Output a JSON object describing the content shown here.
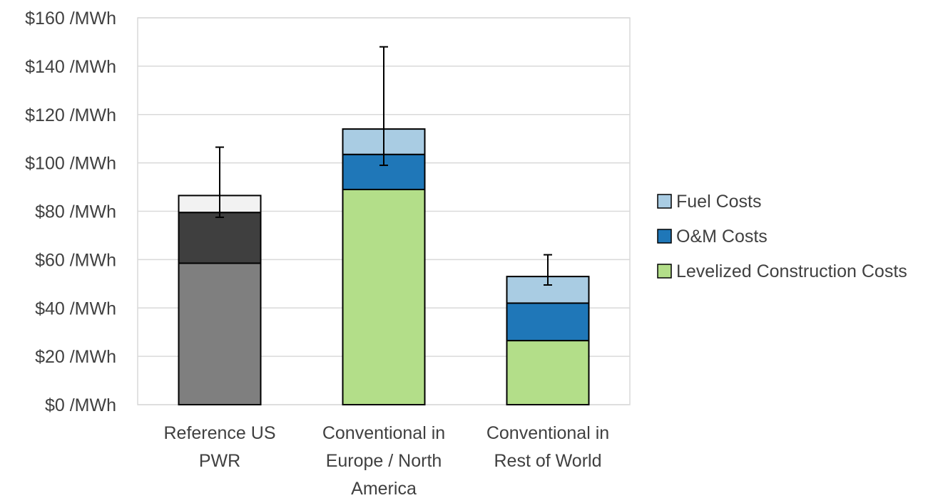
{
  "chart_data": {
    "type": "bar",
    "stacked": true,
    "categories": [
      "Reference US PWR",
      "Conventional in Europe / North America",
      "Conventional in Rest of World"
    ],
    "category_lines": [
      [
        "Reference US",
        "PWR"
      ],
      [
        "Conventional in",
        "Europe / North",
        "America"
      ],
      [
        "Conventional in",
        "Rest of World"
      ]
    ],
    "series": [
      {
        "name": "Levelized Construction Costs",
        "values": [
          58.5,
          89,
          26.5
        ],
        "color": "#b3de89"
      },
      {
        "name": "O&M Costs",
        "values": [
          21,
          14.5,
          15.5
        ],
        "color": "#1f77b8"
      },
      {
        "name": "Fuel Costs",
        "values": [
          7,
          10.5,
          11
        ],
        "color": "#a9cce3"
      }
    ],
    "reference_bar_colors": [
      "#7f7f7f",
      "#3f3f3f",
      "#f2f2f2"
    ],
    "error_bars": [
      {
        "low": 77.5,
        "high": 106.5
      },
      {
        "low": 99,
        "high": 148
      },
      {
        "low": 49.5,
        "high": 62
      }
    ],
    "ylim": [
      0,
      160
    ],
    "y_ticks": [
      0,
      20,
      40,
      60,
      80,
      100,
      120,
      140,
      160
    ],
    "y_tick_format": "${v} /MWh",
    "legend_order": [
      "Fuel Costs",
      "O&M Costs",
      "Levelized Construction Costs"
    ],
    "legend_position": "right",
    "grid": true,
    "title": "",
    "xlabel": "",
    "ylabel": ""
  }
}
